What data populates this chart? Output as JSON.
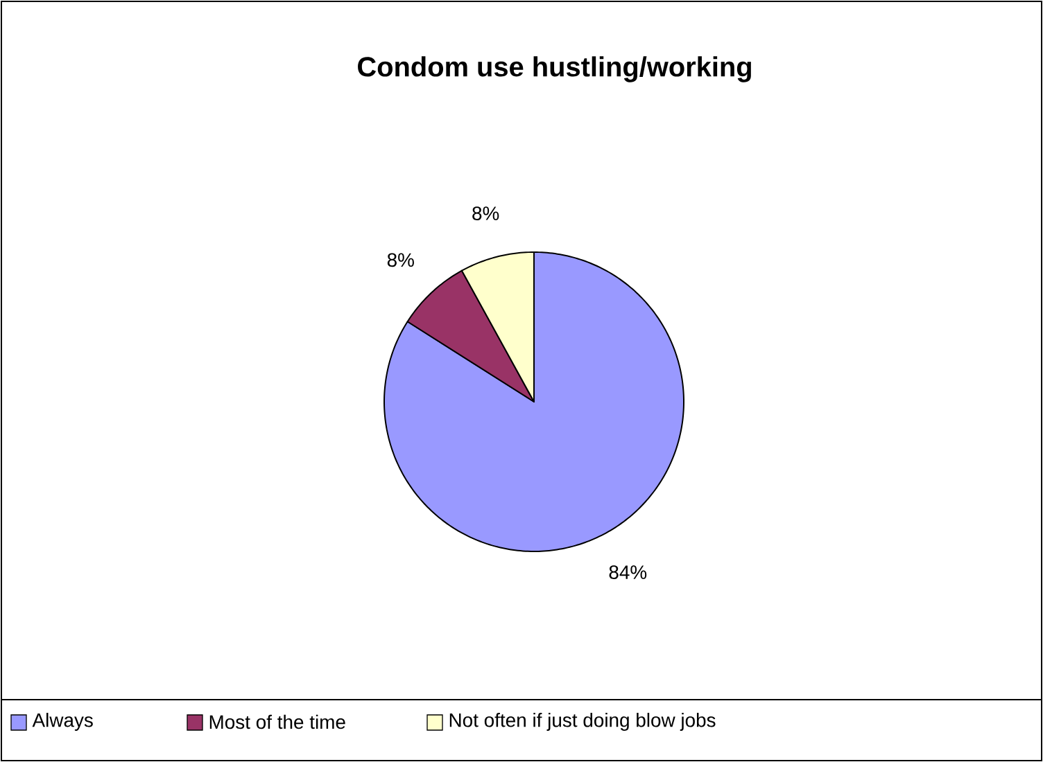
{
  "chart_data": {
    "type": "pie",
    "title": "Condom use hustling/working",
    "categories": [
      "Always",
      "Most of the time",
      "Not often if just doing blow jobs"
    ],
    "values": [
      84,
      8,
      8
    ],
    "colors": [
      "#9999ff",
      "#993366",
      "#ffffcc"
    ],
    "value_labels": [
      "84%",
      "8%",
      "8%"
    ],
    "legend": "bottom"
  }
}
